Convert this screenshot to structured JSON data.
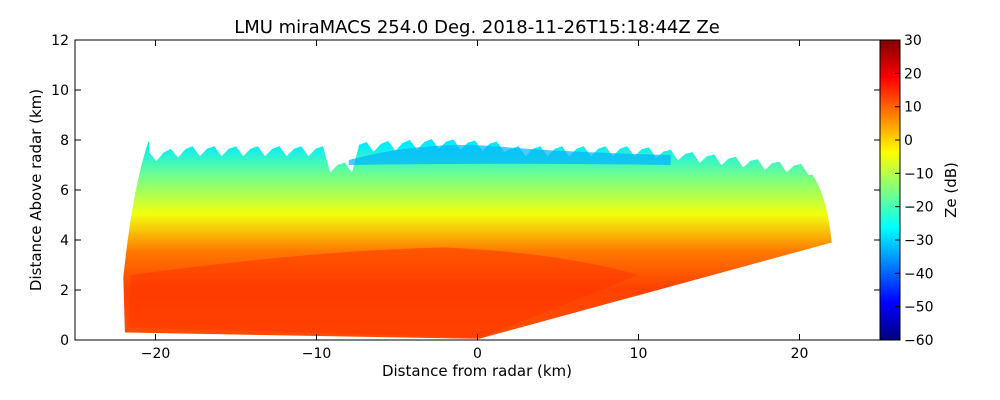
{
  "chart_data": {
    "type": "heatmap",
    "title": "LMU miraMACS 254.0 Deg. 2018-11-26T15:18:44Z  Ze",
    "xlabel": "Distance from radar (km)",
    "ylabel": "Distance Above radar  (km)",
    "xlim": [
      -25,
      25
    ],
    "ylim": [
      0,
      12
    ],
    "xticks": [
      -20,
      -10,
      0,
      10,
      20
    ],
    "xtick_labels": [
      "−20",
      "−10",
      "0",
      "10",
      "20"
    ],
    "yticks": [
      0,
      2,
      4,
      6,
      8,
      10,
      12
    ],
    "ytick_labels": [
      "0",
      "2",
      "4",
      "6",
      "8",
      "10",
      "12"
    ],
    "colorbar": {
      "label": "Ze (dB)",
      "range": [
        -60,
        30
      ],
      "ticks": [
        -60,
        -50,
        -40,
        -30,
        -20,
        -10,
        0,
        10,
        20,
        30
      ],
      "tick_labels": [
        "−60",
        "−50",
        "−40",
        "−30",
        "−20",
        "−10",
        "0",
        "10",
        "20",
        "30"
      ],
      "colormap": "jet",
      "colormap_stops": [
        "#00007f",
        "#0000ff",
        "#007fff",
        "#00ffff",
        "#7fff7f",
        "#ffff00",
        "#ff7f00",
        "#ff0000",
        "#7f0000"
      ]
    },
    "scan": {
      "left_edge_x": -22,
      "right_edge_x": 22,
      "echo_top_km": 8,
      "low_edge_right_km": 3.9,
      "profile_ze_db": [
        {
          "height_km": 0.5,
          "ze_db": 12
        },
        {
          "height_km": 2.0,
          "ze_db": 13
        },
        {
          "height_km": 3.5,
          "ze_db": 8
        },
        {
          "height_km": 5.0,
          "ze_db": -5
        },
        {
          "height_km": 6.5,
          "ze_db": -16
        },
        {
          "height_km": 7.8,
          "ze_db": -28
        }
      ]
    }
  }
}
